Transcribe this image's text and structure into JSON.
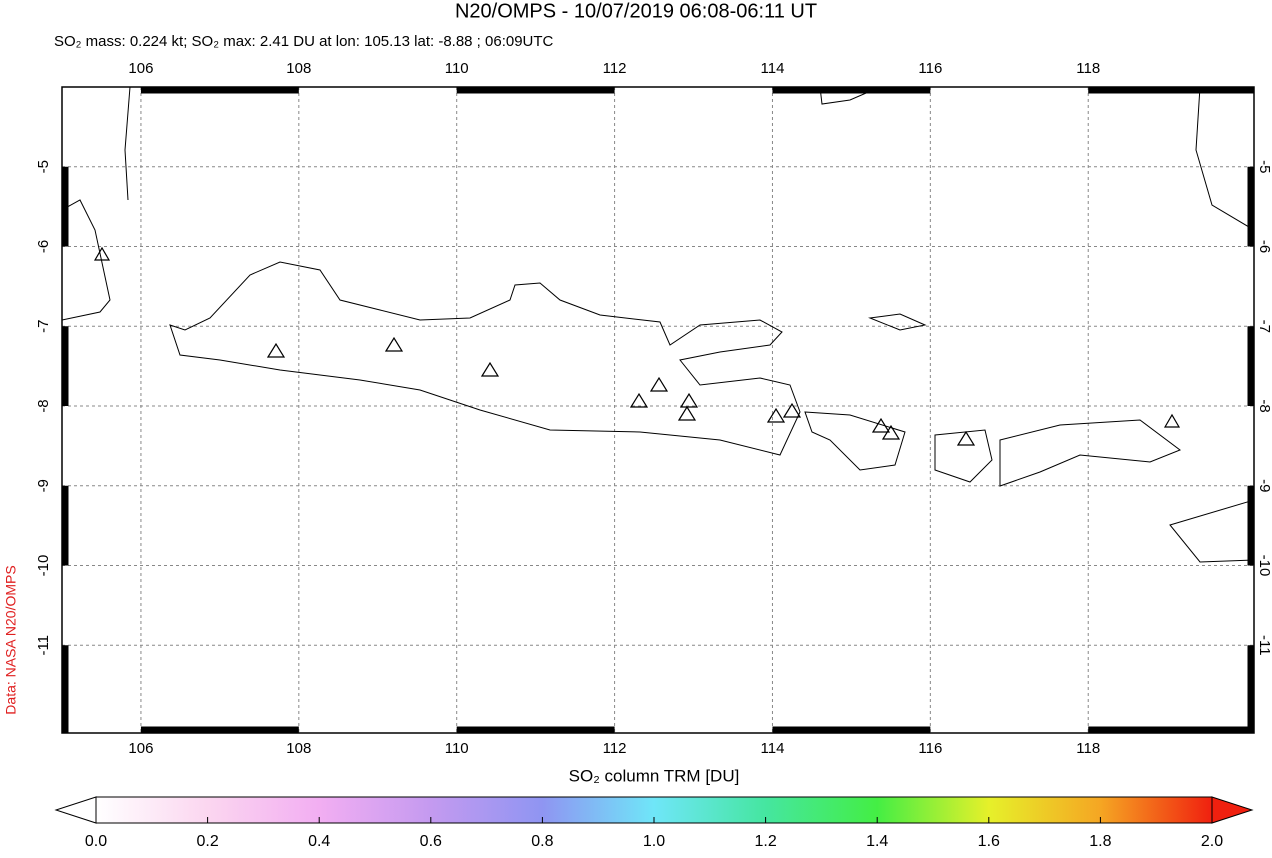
{
  "chart_data": {
    "type": "map",
    "title": "N20/OMPS - 10/07/2019 06:08-06:11 UT",
    "subtitle": "SO₂ mass: 0.224 kt; SO₂ max: 2.41 DU at lon: 105.13 lat: -8.88 ; 06:09UTC",
    "xlim": [
      105.0,
      120.1
    ],
    "ylim": [
      -12.1,
      -4.0
    ],
    "xticks": [
      106,
      108,
      110,
      112,
      114,
      116,
      118
    ],
    "yticks": [
      -5,
      -6,
      -7,
      -8,
      -9,
      -10,
      -11
    ],
    "grid": true,
    "colorbar": {
      "label": "SO₂ column TRM [DU]",
      "lim": [
        0,
        2
      ],
      "ticks": [
        {
          "value": 0,
          "label": "0.0"
        },
        {
          "value": 0.2,
          "label": "0.2"
        },
        {
          "value": 0.4,
          "label": "0.4"
        },
        {
          "value": 0.6,
          "label": "0.6"
        },
        {
          "value": 0.8,
          "label": "0.8"
        },
        {
          "value": 1,
          "label": "1.0"
        },
        {
          "value": 1.2,
          "label": "1.2"
        },
        {
          "value": 1.4,
          "label": "1.4"
        },
        {
          "value": 1.6,
          "label": "1.6"
        },
        {
          "value": 1.8,
          "label": "1.8"
        },
        {
          "value": 2,
          "label": "2.0"
        }
      ]
    },
    "credit": "Data: NASA N20/OMPS"
  }
}
